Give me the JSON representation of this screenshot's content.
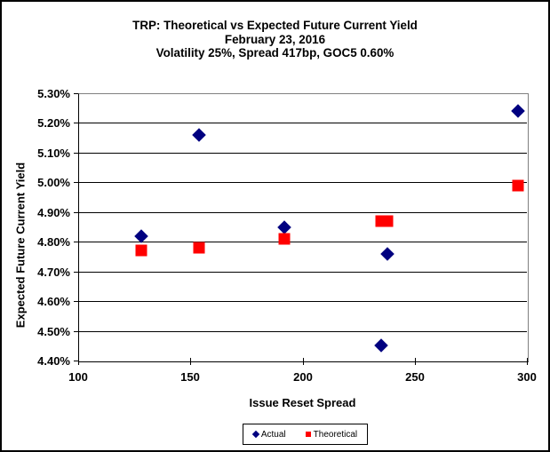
{
  "chart_data": {
    "type": "scatter",
    "title": "TRP: Theoretical vs Expected Future Current Yield",
    "subtitle1": "February 23, 2016",
    "subtitle2": "Volatility 25%, Spread 417bp, GOC5 0.60%",
    "xlabel": "Issue Reset Spread",
    "ylabel": "Expected Future Current Yield",
    "xlim": [
      100,
      300
    ],
    "ylim_percent": [
      4.4,
      5.3
    ],
    "grid": "horizontal-only",
    "legend_position": "bottom-center",
    "x_ticks": [
      {
        "value": 100,
        "label": "100"
      },
      {
        "value": 150,
        "label": "150"
      },
      {
        "value": 200,
        "label": "200"
      },
      {
        "value": 250,
        "label": "250"
      },
      {
        "value": 300,
        "label": "300"
      }
    ],
    "y_ticks": [
      {
        "value": 5.3,
        "label": "5.30%"
      },
      {
        "value": 5.2,
        "label": "5.20%"
      },
      {
        "value": 5.1,
        "label": "5.10%"
      },
      {
        "value": 5.0,
        "label": "5.00%"
      },
      {
        "value": 4.9,
        "label": "4.90%"
      },
      {
        "value": 4.8,
        "label": "4.80%"
      },
      {
        "value": 4.7,
        "label": "4.70%"
      },
      {
        "value": 4.6,
        "label": "4.60%"
      },
      {
        "value": 4.5,
        "label": "4.50%"
      },
      {
        "value": 4.4,
        "label": "4.40%"
      }
    ],
    "series": [
      {
        "name": "Actual",
        "marker": "diamond",
        "color": "#000080",
        "points": [
          {
            "x": 128,
            "y": 4.82
          },
          {
            "x": 154,
            "y": 5.16
          },
          {
            "x": 192,
            "y": 4.85
          },
          {
            "x": 235,
            "y": 4.45
          },
          {
            "x": 238,
            "y": 4.76
          },
          {
            "x": 296,
            "y": 5.24
          }
        ]
      },
      {
        "name": "Theoretical",
        "marker": "square",
        "color": "#FF0000",
        "points": [
          {
            "x": 128,
            "y": 4.77
          },
          {
            "x": 154,
            "y": 4.78
          },
          {
            "x": 192,
            "y": 4.81
          },
          {
            "x": 235,
            "y": 4.87
          },
          {
            "x": 238,
            "y": 4.87
          },
          {
            "x": 296,
            "y": 4.99
          }
        ]
      }
    ]
  }
}
